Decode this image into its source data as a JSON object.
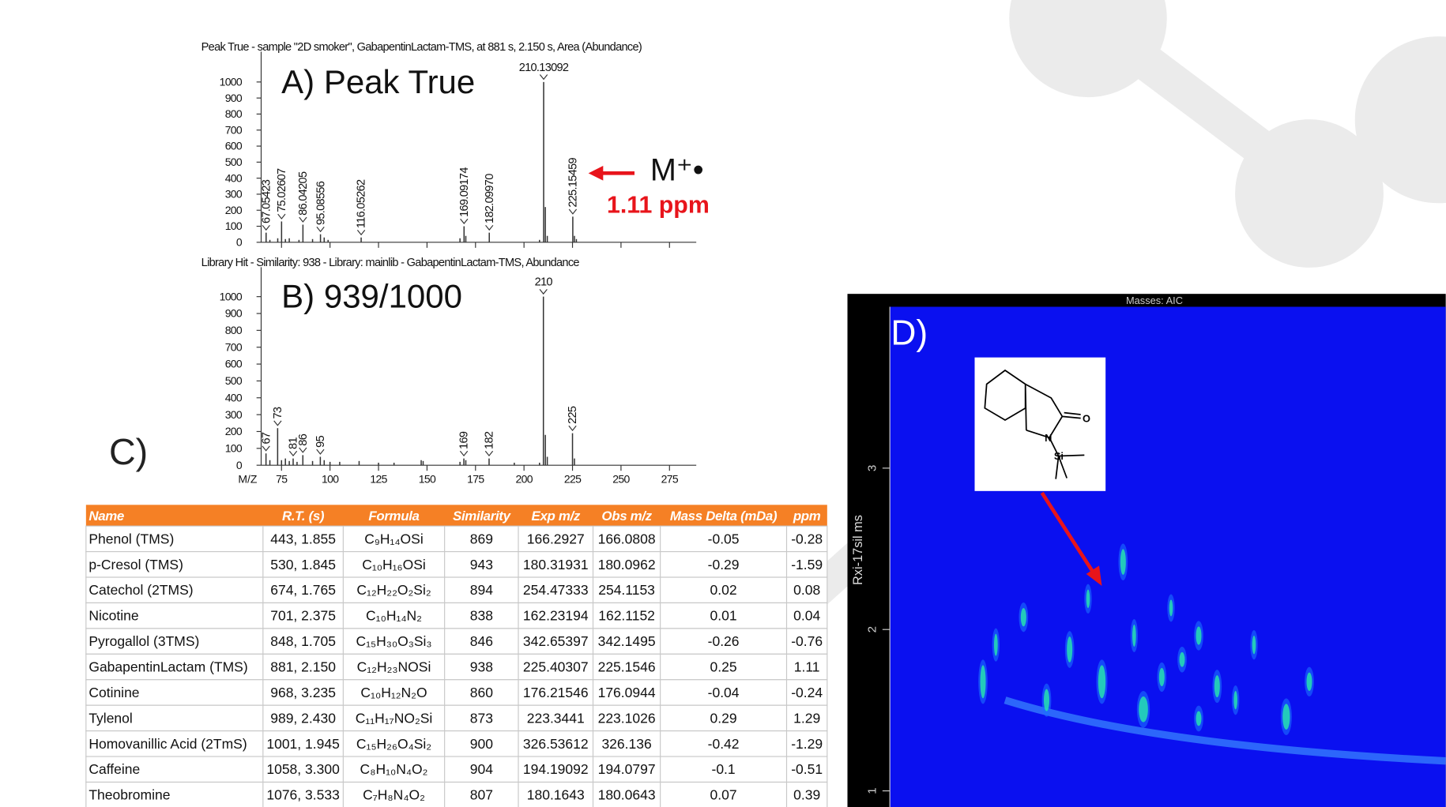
{
  "chart_data": [
    {
      "type": "spectrum",
      "title": "Peak True - sample \"2D smoker\", GabapentinLactam-TMS, at 881 s, 2.150 s, Area (Abundance)",
      "annotation": "A) Peak True",
      "color": "#333333",
      "x": [
        67.05423,
        69,
        73.05,
        75.02607,
        77,
        79,
        84,
        86.04205,
        91,
        95.08556,
        97,
        99,
        116.05262,
        167,
        169.09174,
        170,
        182.0997,
        208,
        210.13092,
        211,
        212,
        225.15459,
        226,
        227
      ],
      "values": [
        60,
        15,
        25,
        130,
        20,
        25,
        15,
        110,
        20,
        50,
        30,
        15,
        30,
        25,
        100,
        40,
        60,
        15,
        1000,
        220,
        40,
        160,
        40,
        20
      ],
      "peak_labels": [
        "67.05423",
        null,
        null,
        "75.02607",
        null,
        null,
        null,
        "86.04205",
        null,
        "95.08556",
        null,
        null,
        "116.05262",
        null,
        "169.09174",
        null,
        "182.09970",
        null,
        "210.13092",
        null,
        null,
        "225.15459",
        null,
        null
      ],
      "xlim": [
        64.5,
        288.8
      ],
      "ylim": [
        0,
        1000
      ],
      "yticks": [
        0,
        100,
        200,
        300,
        400,
        500,
        600,
        700,
        800,
        900,
        1000
      ],
      "xticks": [
        75,
        100,
        125,
        150,
        175,
        200,
        225,
        250,
        275
      ],
      "xtick_labels": false
    },
    {
      "type": "spectrum",
      "title": "Library Hit - Similarity: 938 - Library: mainlib - GabapentinLactam-TMS, Abundance",
      "annotation": "B) 939/1000",
      "xlabel": "M/Z",
      "color": "#333333",
      "x": [
        67,
        69,
        73,
        75,
        77,
        79,
        81,
        83,
        86,
        91,
        95,
        97,
        100,
        105,
        115,
        125,
        133,
        147,
        148,
        167,
        169,
        170,
        182,
        195,
        208,
        210,
        211,
        212,
        225,
        226
      ],
      "values": [
        70,
        30,
        220,
        30,
        40,
        25,
        40,
        20,
        60,
        25,
        50,
        30,
        20,
        20,
        25,
        15,
        15,
        30,
        25,
        20,
        40,
        30,
        40,
        15,
        15,
        1000,
        180,
        50,
        190,
        40
      ],
      "peak_labels": [
        "67",
        null,
        "73",
        null,
        null,
        null,
        "81",
        null,
        "86",
        null,
        "95",
        null,
        null,
        null,
        null,
        null,
        null,
        null,
        null,
        null,
        "169",
        null,
        "182",
        null,
        null,
        "210",
        null,
        null,
        "225",
        null
      ],
      "xlim": [
        64.5,
        288.8
      ],
      "ylim": [
        0,
        1000
      ],
      "yticks": [
        0,
        100,
        200,
        300,
        400,
        500,
        600,
        700,
        800,
        900,
        1000
      ],
      "xticks": [
        75,
        100,
        125,
        150,
        175,
        200,
        225,
        250,
        275
      ],
      "xtick_labels": true
    },
    {
      "type": "gcxgc",
      "label": "D)",
      "title": "Masses: AIC",
      "ylabel": "Rxi-17sil ms",
      "ylim": [
        0.9,
        4.0
      ],
      "yticks": [
        1,
        2,
        3
      ],
      "inset_labels": [
        "O",
        "N",
        "Si"
      ]
    }
  ],
  "annotations": {
    "c_label": "C)",
    "molecular_ion": "M⁺•",
    "ppm": "1.11 ppm"
  },
  "table": {
    "header": [
      "Name",
      "R.T. (s)",
      "Formula",
      "Similarity",
      "Exp m/z",
      "Obs m/z",
      "Mass Delta (mDa)",
      "ppm"
    ],
    "rows": [
      [
        "Phenol (TMS)",
        "443, 1.855",
        "C₉H₁₄OSi",
        "869",
        "166.2927",
        "166.0808",
        "-0.05",
        "-0.28"
      ],
      [
        "p-Cresol (TMS)",
        "530, 1.845",
        "C₁₀H₁₆OSi",
        "943",
        "180.31931",
        "180.0962",
        "-0.29",
        "-1.59"
      ],
      [
        "Catechol (2TMS)",
        "674, 1.765",
        "C₁₂H₂₂O₂Si₂",
        "894",
        "254.47333",
        "254.1153",
        "0.02",
        "0.08"
      ],
      [
        "Nicotine",
        "701, 2.375",
        "C₁₀H₁₄N₂",
        "838",
        "162.23194",
        "162.1152",
        "0.01",
        "0.04"
      ],
      [
        "Pyrogallol (3TMS)",
        "848, 1.705",
        "C₁₅H₃₀O₃Si₃",
        "846",
        "342.65397",
        "342.1495",
        "-0.26",
        "-0.76"
      ],
      [
        "GabapentinLactam (TMS)",
        "881, 2.150",
        "C₁₂H₂₃NOSi",
        "938",
        "225.40307",
        "225.1546",
        "0.25",
        "1.11"
      ],
      [
        "Cotinine",
        "968, 3.235",
        "C₁₀H₁₂N₂O",
        "860",
        "176.21546",
        "176.0944",
        "-0.04",
        "-0.24"
      ],
      [
        "Tylenol",
        "989, 2.430",
        "C₁₁H₁₇NO₂Si",
        "873",
        "223.3441",
        "223.1026",
        "0.29",
        "1.29"
      ],
      [
        "Homovanillic Acid (2TmS)",
        "1001, 1.945",
        "C₁₅H₂₆O₄Si₂",
        "900",
        "326.53612",
        "326.136",
        "-0.42",
        "-1.29"
      ],
      [
        "Caffeine",
        "1058, 3.300",
        "C₈H₁₀N₄O₂",
        "904",
        "194.19092",
        "194.0797",
        "-0.1",
        "-0.51"
      ],
      [
        "Theobromine",
        "1076, 3.533",
        "C₇H₈N₄O₂",
        "807",
        "180.1643",
        "180.0643",
        "0.07",
        "0.39"
      ]
    ]
  }
}
